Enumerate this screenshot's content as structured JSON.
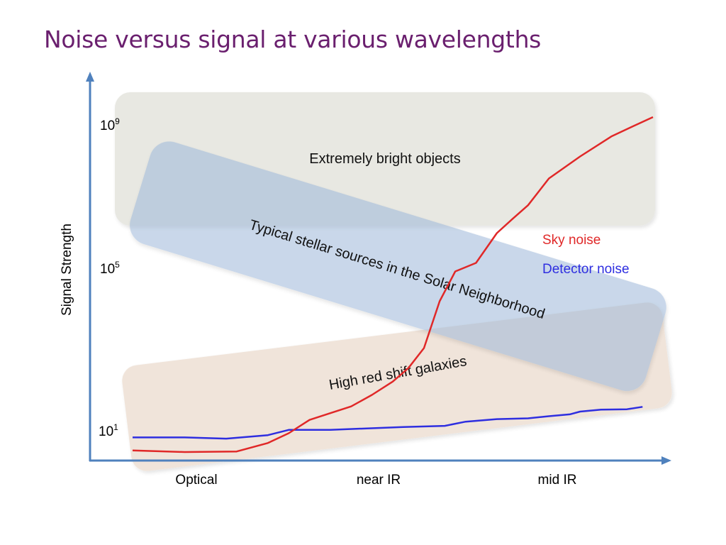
{
  "title": "Noise versus signal at various wavelengths",
  "chart_data": {
    "type": "line",
    "title": "Noise versus signal at various wavelengths",
    "ylabel": "Signal Strength",
    "xlabel": "",
    "y_scale": "log",
    "y_ticks": [
      {
        "base": "10",
        "exp": "9",
        "value": 1000000000
      },
      {
        "base": "10",
        "exp": "5",
        "value": 100000
      },
      {
        "base": "10",
        "exp": "1",
        "value": 10
      }
    ],
    "x_ticks": [
      "Optical",
      "near IR",
      "mid IR"
    ],
    "legend_placement": "right",
    "colors": {
      "sky_noise": "#e02828",
      "detector_noise": "#2e2ee0",
      "axis": "#4f81bd"
    },
    "regions": [
      {
        "label": "Extremely bright objects",
        "color": "#d9d9d0"
      },
      {
        "label": "Typical stellar sources in the Solar Neighborhood",
        "color": "#9db8d9"
      },
      {
        "label": "High red shift galaxies",
        "color": "#e8d5c4"
      }
    ],
    "series": [
      {
        "name": "Sky noise",
        "color": "#e02828",
        "x": [
          0.0,
          0.1,
          0.2,
          0.26,
          0.3,
          0.34,
          0.38,
          0.42,
          0.46,
          0.5,
          0.53,
          0.56,
          0.59,
          0.62,
          0.66,
          0.7,
          0.73,
          0.76,
          0.8,
          0.86,
          0.92,
          0.96,
          1.0
        ],
        "y": [
          3.2,
          2.9,
          3.0,
          5.0,
          9.0,
          20.0,
          30.0,
          45.0,
          90.0,
          200.0,
          450.0,
          1500.0,
          25000.0,
          150000.0,
          250000.0,
          1500000.0,
          3500000.0,
          8000000.0,
          40000000.0,
          150000000.0,
          500000000.0,
          900000000.0,
          1600000000.0
        ]
      },
      {
        "name": "Detector noise",
        "color": "#2e2ee0",
        "x": [
          0.0,
          0.1,
          0.18,
          0.26,
          0.3,
          0.34,
          0.38,
          0.45,
          0.52,
          0.6,
          0.64,
          0.7,
          0.76,
          0.8,
          0.84,
          0.86,
          0.9,
          0.95,
          0.98
        ],
        "y": [
          7.0,
          7.0,
          6.5,
          8.0,
          11.0,
          11.0,
          11.0,
          12.0,
          13.0,
          14.0,
          18.0,
          21.0,
          22.0,
          25.0,
          28.0,
          33.0,
          37.0,
          38.0,
          44.0
        ]
      }
    ]
  }
}
